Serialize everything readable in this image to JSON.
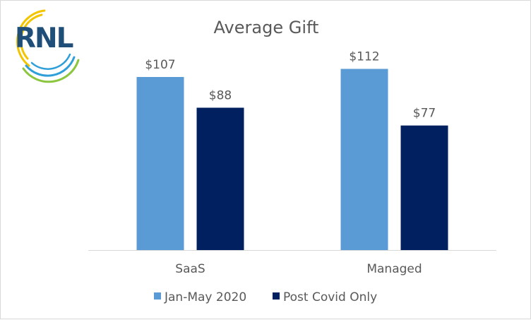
{
  "logo": {
    "text": "RNL",
    "text_color": "#1f4e79",
    "arc_colors": [
      "#f2c500",
      "#8cc63f",
      "#2e9fd9"
    ]
  },
  "chart_data": {
    "type": "bar",
    "title": "Average Gift",
    "xlabel": "",
    "ylabel": "",
    "categories": [
      "SaaS",
      "Managed"
    ],
    "series": [
      {
        "name": "Jan-May 2020",
        "values": [
          107,
          112
        ],
        "labels": [
          "$107",
          "$112"
        ],
        "color": "#5b9bd5"
      },
      {
        "name": "Post Covid Only",
        "values": [
          88,
          77
        ],
        "labels": [
          "$88",
          "$77"
        ],
        "color": "#002060"
      }
    ],
    "ylim": [
      0,
      120
    ],
    "grid": false,
    "legend_position": "bottom"
  }
}
